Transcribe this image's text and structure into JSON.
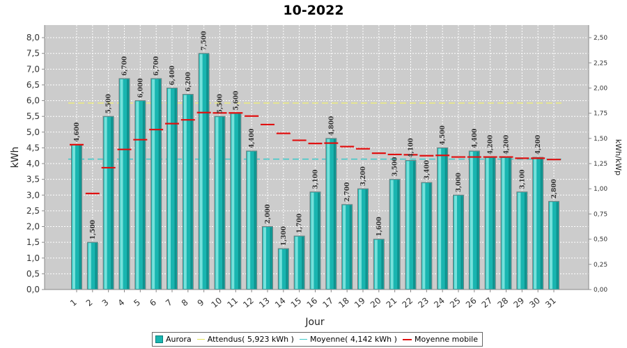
{
  "chart_data": {
    "type": "bar",
    "title": "10-2022",
    "xlabel": "Jour",
    "ylabel": "kWh",
    "ylabel_right": "kWh/kWp",
    "ylim": [
      0,
      8.4
    ],
    "ylim_right": [
      0,
      2.625
    ],
    "y_ticks": [
      "0,0",
      "0,5",
      "1,0",
      "1,5",
      "2,0",
      "2,5",
      "3,0",
      "3,5",
      "4,0",
      "4,5",
      "5,0",
      "5,5",
      "6,0",
      "6,5",
      "7,0",
      "7,5",
      "8,0"
    ],
    "y_right_ticks": [
      "0,00",
      "0,25",
      "0,50",
      "0,75",
      "1,00",
      "1,25",
      "1,50",
      "1,75",
      "2,00",
      "2,25",
      "2,50"
    ],
    "categories": [
      "1",
      "2",
      "3",
      "4",
      "5",
      "6",
      "7",
      "8",
      "9",
      "10",
      "11",
      "12",
      "13",
      "14",
      "15",
      "16",
      "17",
      "18",
      "19",
      "20",
      "21",
      "22",
      "23",
      "24",
      "25",
      "26",
      "27",
      "28",
      "29",
      "30",
      "31"
    ],
    "series": [
      {
        "name": "Aurora",
        "kind": "bar",
        "color": "#19b5b0",
        "values": [
          4.6,
          1.5,
          5.5,
          6.7,
          6.0,
          6.7,
          6.4,
          6.2,
          7.5,
          5.5,
          5.6,
          4.4,
          2.0,
          1.3,
          1.7,
          3.1,
          4.8,
          2.7,
          3.2,
          1.6,
          3.5,
          4.1,
          3.4,
          4.5,
          3.0,
          4.4,
          4.2,
          4.2,
          3.1,
          4.2,
          2.8
        ],
        "labels": [
          "4,600",
          "1,500",
          "5,500",
          "6,700",
          "6,000",
          "6,700",
          "6,400",
          "6,200",
          "7,500",
          "5,500",
          "5,600",
          "4,400",
          "2,000",
          "1,300",
          "1,700",
          "3,100",
          "4,800",
          "2,700",
          "3,200",
          "1,600",
          "3,500",
          "4,100",
          "3,400",
          "4,500",
          "3,000",
          "4,400",
          "4,200",
          "4,200",
          "3,100",
          "4,200",
          "2,800"
        ]
      },
      {
        "name": "Attendus( 5,923 kWh )",
        "kind": "hline",
        "color": "#f0f07a",
        "value": 5.923
      },
      {
        "name": "Moyenne( 4,142 kWh )",
        "kind": "hline",
        "color": "#3cc8c8",
        "value": 4.142
      },
      {
        "name": "Moyenne mobile",
        "kind": "step",
        "color": "#e01010",
        "values": [
          4.6,
          3.05,
          3.87,
          4.45,
          4.76,
          5.08,
          5.27,
          5.39,
          5.62,
          5.61,
          5.61,
          5.51,
          5.24,
          4.96,
          4.74,
          4.64,
          4.65,
          4.54,
          4.47,
          4.33,
          4.29,
          4.28,
          4.25,
          4.26,
          4.21,
          4.21,
          4.21,
          4.21,
          4.17,
          4.17,
          4.13
        ]
      }
    ],
    "grid": true,
    "legend_position": "bottom-center"
  }
}
